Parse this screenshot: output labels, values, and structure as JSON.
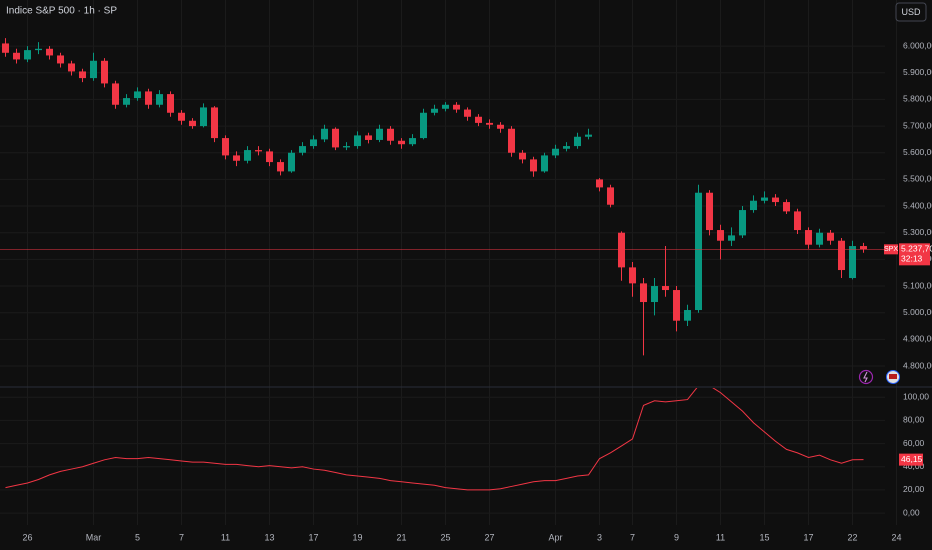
{
  "chart_data": [
    {
      "type": "candlestick",
      "title": "Indice S&P 500 · 1h · SP",
      "currency": "USD",
      "symbol": "SPX",
      "countdown": "32:13",
      "last_value_label": "5.237,70",
      "up_color": "#089981",
      "down_color": "#f23645",
      "grid": true,
      "ylim": [
        4725,
        6173
      ],
      "yticks": [
        {
          "value": 6000,
          "label": "6.000,00"
        },
        {
          "value": 5900,
          "label": "5.900,00"
        },
        {
          "value": 5800,
          "label": "5.800,00"
        },
        {
          "value": 5700,
          "label": "5.700,00"
        },
        {
          "value": 5600,
          "label": "5.600,00"
        },
        {
          "value": 5500,
          "label": "5.500,00"
        },
        {
          "value": 5400,
          "label": "5.400,00"
        },
        {
          "value": 5300,
          "label": "5.300,00"
        },
        {
          "value": 5200,
          "label": "5.200,00"
        },
        {
          "value": 5100,
          "label": "5.100,00"
        },
        {
          "value": 5000,
          "label": "5.000,00"
        },
        {
          "value": 4900,
          "label": "4.900,00"
        },
        {
          "value": 4800,
          "label": "4.800,00"
        }
      ],
      "categories": [
        null,
        null,
        "26",
        null,
        null,
        null,
        null,
        null,
        "Mar",
        null,
        null,
        null,
        "5",
        null,
        null,
        null,
        "7",
        null,
        null,
        null,
        "11",
        null,
        null,
        null,
        "13",
        null,
        null,
        null,
        "17",
        null,
        null,
        null,
        "19",
        null,
        null,
        null,
        "21",
        null,
        null,
        null,
        "25",
        null,
        null,
        null,
        "27",
        null,
        null,
        null,
        null,
        null,
        "Apr",
        null,
        null,
        null,
        "3",
        null,
        null,
        "7",
        null,
        null,
        null,
        "9",
        null,
        null,
        null,
        "11",
        null,
        null,
        null,
        "15",
        null,
        null,
        null,
        "17",
        null,
        null,
        null,
        "22",
        null,
        null,
        null,
        "24"
      ],
      "open": [
        6010,
        5975,
        5950,
        5985,
        5990,
        5965,
        5935,
        5905,
        5880,
        5945,
        5860,
        5780,
        5805,
        5830,
        5780,
        5820,
        5750,
        5720,
        5700,
        5770,
        5655,
        5590,
        5570,
        5610,
        5605,
        5565,
        5530,
        5600,
        5625,
        5650,
        5690,
        5620,
        5625,
        5665,
        5648,
        5690,
        5645,
        5632,
        5655,
        5750,
        5765,
        5780,
        5762,
        5735,
        5712,
        5705,
        5690,
        5600,
        5575,
        5530,
        5590,
        5615,
        5625,
        5660,
        5500,
        5470,
        5300,
        5170,
        5110,
        5040,
        5100,
        5085,
        4970,
        5010,
        5450,
        5310,
        5270,
        5290,
        5385,
        5420,
        5432,
        5415,
        5380,
        5310,
        5255,
        5300,
        5270,
        5130,
        5250,
        null,
        null,
        null
      ],
      "high": [
        6030,
        5990,
        6000,
        6015,
        6000,
        5975,
        5945,
        5915,
        5975,
        5955,
        5870,
        5820,
        5845,
        5840,
        5835,
        5830,
        5760,
        5730,
        5785,
        5775,
        5665,
        5605,
        5625,
        5625,
        5615,
        5575,
        5610,
        5640,
        5665,
        5705,
        5695,
        5640,
        5680,
        5675,
        5705,
        5700,
        5655,
        5670,
        5765,
        5780,
        5790,
        5790,
        5770,
        5745,
        5725,
        5715,
        5700,
        5610,
        5585,
        5600,
        5630,
        5640,
        5675,
        5690,
        5505,
        5480,
        5305,
        5190,
        5130,
        5130,
        5250,
        5100,
        5030,
        5480,
        5460,
        5330,
        5320,
        5400,
        5440,
        5455,
        5445,
        5425,
        5390,
        5320,
        5315,
        5310,
        5280,
        5270,
        5262,
        null,
        null,
        null
      ],
      "low": [
        5960,
        5935,
        5940,
        5970,
        5950,
        5920,
        5890,
        5865,
        5870,
        5845,
        5765,
        5770,
        5795,
        5765,
        5770,
        5735,
        5705,
        5690,
        5695,
        5640,
        5575,
        5550,
        5560,
        5590,
        5550,
        5515,
        5525,
        5590,
        5615,
        5640,
        5610,
        5610,
        5615,
        5635,
        5640,
        5630,
        5615,
        5625,
        5650,
        5740,
        5755,
        5750,
        5720,
        5700,
        5690,
        5675,
        5585,
        5560,
        5510,
        5525,
        5580,
        5605,
        5615,
        5650,
        5455,
        5395,
        5120,
        5060,
        4840,
        4990,
        5060,
        4930,
        4950,
        5000,
        5290,
        5200,
        5250,
        5280,
        5375,
        5410,
        5400,
        5370,
        5295,
        5240,
        5245,
        5255,
        5130,
        5125,
        5225,
        null,
        null,
        null
      ],
      "close": [
        5975,
        5950,
        5985,
        5990,
        5965,
        5935,
        5905,
        5880,
        5945,
        5860,
        5780,
        5805,
        5830,
        5780,
        5820,
        5750,
        5720,
        5700,
        5770,
        5655,
        5590,
        5570,
        5610,
        5605,
        5565,
        5530,
        5600,
        5625,
        5650,
        5690,
        5620,
        5625,
        5665,
        5648,
        5690,
        5645,
        5632,
        5655,
        5750,
        5765,
        5780,
        5762,
        5735,
        5712,
        5705,
        5690,
        5600,
        5575,
        5530,
        5590,
        5615,
        5625,
        5660,
        5668,
        5470,
        5405,
        5170,
        5110,
        5040,
        5100,
        5085,
        4970,
        5010,
        5450,
        5310,
        5270,
        5290,
        5385,
        5420,
        5432,
        5415,
        5380,
        5310,
        5255,
        5300,
        5270,
        5160,
        5250,
        5237.7,
        null,
        null,
        null
      ]
    },
    {
      "type": "line",
      "color": "#f23645",
      "grid": true,
      "last_value_label": "46,15",
      "ylim": [
        -10.3,
        108
      ],
      "yticks": [
        {
          "value": 100,
          "label": "100,00"
        },
        {
          "value": 80,
          "label": "80,00"
        },
        {
          "value": 60,
          "label": "60,00"
        },
        {
          "value": 40,
          "label": "40,00"
        },
        {
          "value": 20,
          "label": "20,00"
        },
        {
          "value": 0,
          "label": "0,00"
        }
      ],
      "values": [
        22,
        24,
        26,
        29,
        33,
        36,
        38,
        40,
        43,
        46,
        48,
        47,
        47,
        48,
        47,
        46,
        45,
        44,
        44,
        43,
        42,
        42,
        41,
        40,
        41,
        40,
        39,
        40,
        38,
        37,
        35,
        33,
        32,
        31,
        30,
        28,
        27,
        26,
        25,
        24,
        22,
        21,
        20,
        20,
        20,
        21,
        23,
        25,
        27,
        28,
        28,
        30,
        32,
        33,
        47,
        52,
        58,
        64,
        93,
        97,
        96,
        97,
        98,
        110,
        110,
        104,
        96,
        88,
        78,
        70,
        62,
        55,
        52,
        48,
        50,
        46,
        43,
        46,
        46.15,
        null,
        null,
        null
      ]
    }
  ]
}
